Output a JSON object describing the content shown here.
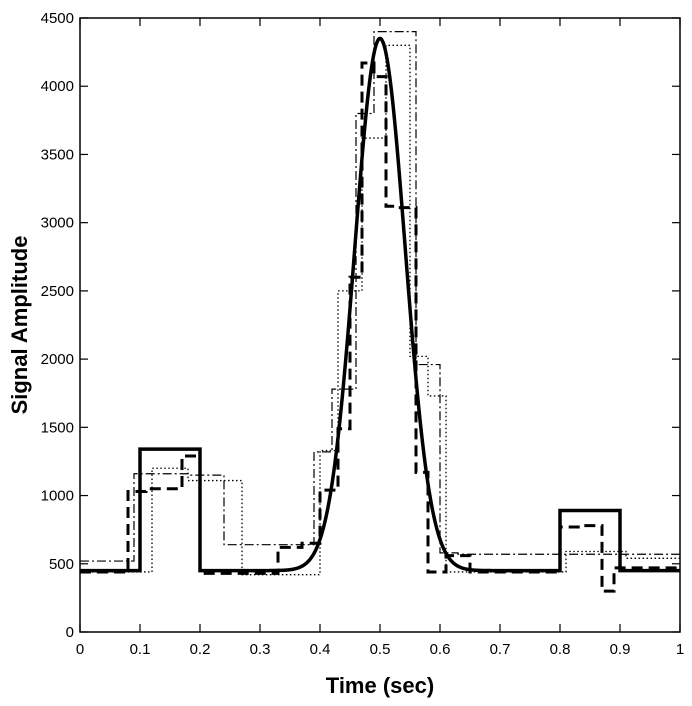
{
  "chart_data": {
    "type": "line",
    "title": "",
    "xlabel": "Time (sec)",
    "ylabel": "Signal Amplitude",
    "xlim": [
      0,
      1
    ],
    "ylim": [
      0,
      4500
    ],
    "xticks": [
      0,
      0.1,
      0.2,
      0.3,
      0.4,
      0.5,
      0.6,
      0.7,
      0.8,
      0.9,
      1
    ],
    "xtick_labels": [
      "0",
      "0.1",
      "0.2",
      "0.3",
      "0.4",
      "0.5",
      "0.6",
      "0.7",
      "0.8",
      "0.9",
      "1"
    ],
    "yticks": [
      0,
      500,
      1000,
      1500,
      2000,
      2500,
      3000,
      3500,
      4000,
      4500
    ],
    "ytick_labels": [
      "0",
      "500",
      "1000",
      "1500",
      "2000",
      "2500",
      "3000",
      "3500",
      "4000",
      "4500"
    ],
    "grid": false,
    "legend": "none",
    "series": [
      {
        "style": "solid-thick",
        "color": "#000000",
        "function": {
          "baseline": 450,
          "peak": 4350,
          "center": 0.5,
          "sigma": 0.042
        },
        "steps": [
          {
            "x0": 0.1,
            "x1": 0.2,
            "y": 1340
          },
          {
            "x0": 0.8,
            "x1": 0.9,
            "y": 890
          }
        ]
      },
      {
        "style": "dashed-thick",
        "color": "#000000",
        "x": [
          0,
          0.07,
          0.08,
          0.1,
          0.11,
          0.16,
          0.17,
          0.19,
          0.2,
          0.32,
          0.33,
          0.36,
          0.37,
          0.39,
          0.4,
          0.42,
          0.43,
          0.44,
          0.45,
          0.46,
          0.47,
          0.48,
          0.49,
          0.5,
          0.51,
          0.52,
          0.53,
          0.55,
          0.56,
          0.57,
          0.58,
          0.6,
          0.61,
          0.64,
          0.65,
          0.79,
          0.8,
          0.83,
          0.84,
          0.86,
          0.87,
          0.88,
          0.89,
          1
        ],
        "y": [
          440,
          440,
          1030,
          1030,
          1050,
          1050,
          1290,
          1290,
          430,
          430,
          620,
          620,
          650,
          650,
          1040,
          1040,
          1490,
          1490,
          2600,
          2600,
          4170,
          4170,
          4070,
          4070,
          3120,
          3120,
          3110,
          3110,
          1170,
          1170,
          440,
          440,
          560,
          560,
          440,
          440,
          770,
          770,
          780,
          780,
          300,
          300,
          470,
          470
        ]
      },
      {
        "style": "dashdot-thin",
        "color": "#000000",
        "x": [
          0,
          0.08,
          0.09,
          0.17,
          0.18,
          0.23,
          0.24,
          0.3,
          0.31,
          0.38,
          0.39,
          0.41,
          0.42,
          0.45,
          0.46,
          0.48,
          0.49,
          0.55,
          0.56,
          0.59,
          0.6,
          0.62,
          0.63,
          0.8,
          0.81,
          1
        ],
        "y": [
          520,
          520,
          1160,
          1160,
          1150,
          1150,
          640,
          640,
          640,
          640,
          1320,
          1320,
          1780,
          1780,
          3800,
          3800,
          4400,
          4400,
          1960,
          1960,
          580,
          580,
          570,
          570,
          570,
          570
        ]
      },
      {
        "style": "dotted-thin",
        "color": "#000000",
        "x": [
          0,
          0.11,
          0.12,
          0.17,
          0.18,
          0.26,
          0.27,
          0.39,
          0.4,
          0.42,
          0.43,
          0.46,
          0.47,
          0.5,
          0.51,
          0.54,
          0.55,
          0.57,
          0.58,
          0.6,
          0.61,
          0.8,
          0.81,
          0.9,
          0.91,
          1
        ],
        "y": [
          440,
          440,
          1200,
          1200,
          1110,
          1110,
          420,
          420,
          1330,
          1330,
          2500,
          2500,
          3620,
          3620,
          4300,
          4300,
          2020,
          2020,
          1730,
          1730,
          440,
          440,
          590,
          590,
          540,
          540
        ]
      }
    ]
  }
}
